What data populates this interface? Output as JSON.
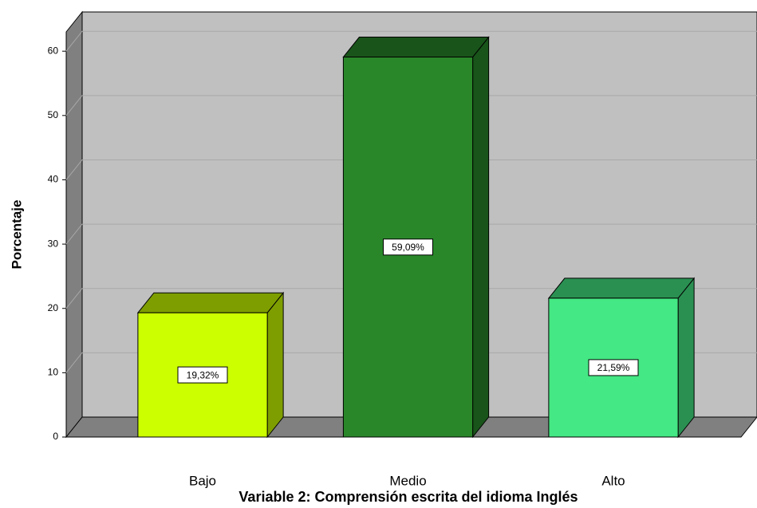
{
  "chart_data": {
    "type": "bar3d",
    "x_label": "Variable 2: Comprensión escrita del idioma Inglés",
    "y_label": "Porcentaje",
    "categories": [
      "Bajo",
      "Medio",
      "Alto"
    ],
    "values": [
      19.32,
      59.09,
      21.59
    ],
    "value_labels": [
      "19,32%",
      "59,09%",
      "21,59%"
    ],
    "colors": [
      "#ccff00",
      "#29872a",
      "#44e884"
    ],
    "ylim": [
      0,
      63
    ],
    "yticks": [
      0,
      10,
      20,
      30,
      40,
      50,
      60
    ],
    "grid": true
  }
}
